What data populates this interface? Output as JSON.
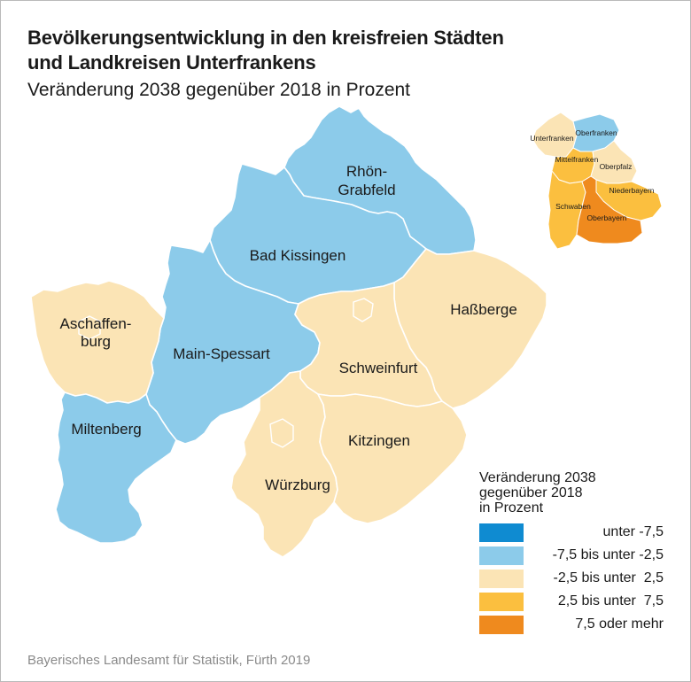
{
  "title_line1": "Bevölkerungsentwicklung in den kreisfreien Städten",
  "title_line2": "und Landkreisen Unterfrankens",
  "subtitle": "Veränderung 2038 gegenüber 2018 in Prozent",
  "regions": {
    "rhoen_grabfeld": {
      "label_1": "Rhön-",
      "label_2": "Grabfeld",
      "class": "-7,5 bis unter -2,5"
    },
    "bad_kissingen": {
      "label": "Bad Kissingen",
      "class": "-7,5 bis unter -2,5"
    },
    "aschaffenburg": {
      "label_1": "Aschaffen-",
      "label_2": "burg",
      "class": "-2,5 bis unter 2,5"
    },
    "main_spessart": {
      "label": "Main-Spessart",
      "class": "-7,5 bis unter -2,5"
    },
    "hassberge": {
      "label": "Haßberge",
      "class": "-2,5 bis unter 2,5"
    },
    "schweinfurt": {
      "label": "Schweinfurt",
      "class": "-2,5 bis unter 2,5"
    },
    "miltenberg": {
      "label": "Miltenberg",
      "class": "-7,5 bis unter -2,5"
    },
    "kitzingen": {
      "label": "Kitzingen",
      "class": "-2,5 bis unter 2,5"
    },
    "wuerzburg": {
      "label": "Würzburg",
      "class": "-2,5 bis unter 2,5"
    }
  },
  "inset": {
    "unterfranken": "Unterfranken",
    "oberfranken": "Oberfranken",
    "mittelfranken": "Mittelfranken",
    "oberpfalz": "Oberpfalz",
    "niederbayern": "Niederbayern",
    "schwaben": "Schwaben",
    "oberbayern": "Oberbayern"
  },
  "legend": {
    "title_1": "Veränderung 2038",
    "title_2": "gegenüber 2018",
    "title_3": "in Prozent",
    "items": [
      {
        "label": "unter -7,5",
        "color": "#0f8bd1"
      },
      {
        "label": "-7,5 bis unter -2,5",
        "color": "#8ccbea"
      },
      {
        "label": "-2,5 bis unter  2,5",
        "color": "#fbe4b5"
      },
      {
        "label": "2,5 bis unter  7,5",
        "color": "#fbbf3f"
      },
      {
        "label": "7,5 oder mehr",
        "color": "#ef8a1e"
      }
    ]
  },
  "colors": {
    "blue_light": "#8ccbea",
    "cream": "#fbe4b5",
    "yellow": "#fbbf3f",
    "orange": "#ef8a1e",
    "border": "#ffffff"
  },
  "source": "Bayerisches Landesamt für Statistik, Fürth 2019"
}
